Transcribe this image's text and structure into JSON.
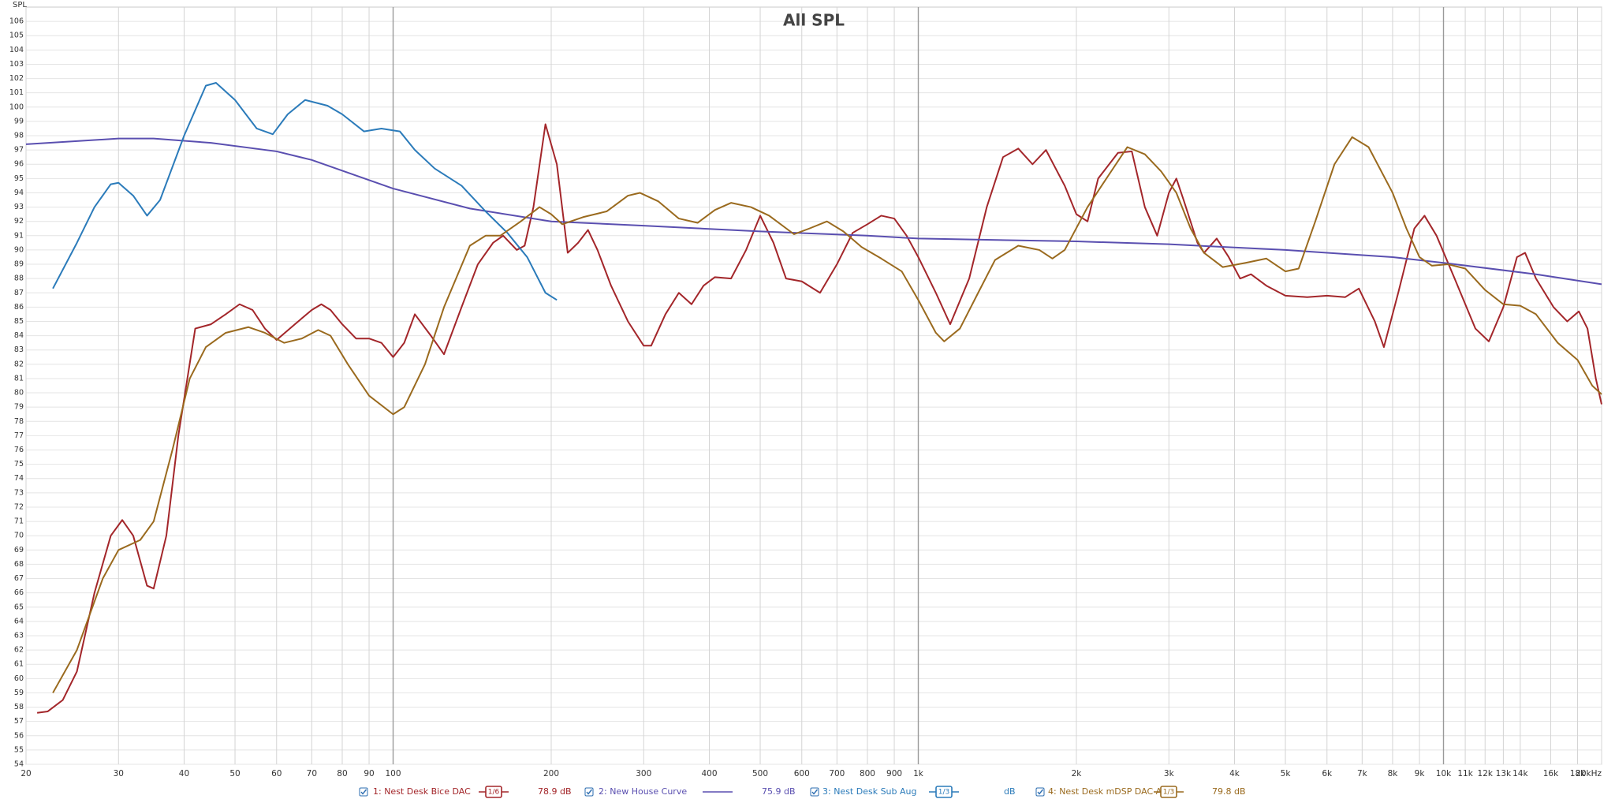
{
  "chart_data": {
    "type": "line",
    "title": "All SPL",
    "y_label": "SPL",
    "xscale": "log",
    "grid": true,
    "xlim": [
      20,
      20000
    ],
    "ylim": [
      54,
      107
    ],
    "xticks": [
      20,
      30,
      40,
      50,
      60,
      70,
      80,
      90,
      100,
      200,
      300,
      400,
      500,
      600,
      700,
      800,
      900,
      {
        "value": 1000,
        "label": "1k"
      },
      {
        "value": 2000,
        "label": "2k"
      },
      {
        "value": 3000,
        "label": "3k"
      },
      {
        "value": 4000,
        "label": "4k"
      },
      {
        "value": 5000,
        "label": "5k"
      },
      {
        "value": 6000,
        "label": "6k"
      },
      {
        "value": 7000,
        "label": "7k"
      },
      {
        "value": 8000,
        "label": "8k"
      },
      {
        "value": 9000,
        "label": "9k"
      },
      {
        "value": 10000,
        "label": "10k"
      },
      {
        "value": 11000,
        "label": "11k"
      },
      {
        "value": 12000,
        "label": "12k"
      },
      {
        "value": 13000,
        "label": "13k"
      },
      {
        "value": 14000,
        "label": "14k"
      },
      {
        "value": 16000,
        "label": "16k"
      },
      {
        "value": 18000,
        "label": "18k"
      },
      {
        "value": 20000,
        "label": "20kHz"
      }
    ],
    "yticks": [
      54,
      55,
      56,
      57,
      58,
      59,
      60,
      61,
      62,
      63,
      64,
      65,
      66,
      67,
      68,
      69,
      70,
      71,
      72,
      73,
      74,
      75,
      76,
      77,
      78,
      79,
      80,
      81,
      82,
      83,
      84,
      85,
      86,
      87,
      88,
      89,
      90,
      91,
      92,
      93,
      94,
      95,
      96,
      97,
      98,
      99,
      100,
      101,
      102,
      103,
      104,
      105,
      106
    ],
    "series": [
      {
        "name": "1: Nest Desk Bice DAC",
        "smoothing": "1/6",
        "level": "78.9 dB",
        "color": "#a3262a",
        "x": [
          21,
          22,
          23.5,
          25,
          27,
          29,
          30.5,
          32,
          34,
          35,
          37,
          39,
          42,
          45,
          48,
          51,
          54,
          57,
          60,
          65,
          70,
          73,
          76,
          80,
          85,
          90,
          95,
          100,
          105,
          110,
          118,
          125,
          135,
          145,
          155,
          162,
          172,
          178,
          185,
          195,
          205,
          215,
          225,
          235,
          245,
          260,
          280,
          300,
          310,
          330,
          350,
          370,
          390,
          410,
          440,
          470,
          500,
          530,
          560,
          600,
          650,
          700,
          750,
          800,
          850,
          900,
          950,
          1000,
          1080,
          1150,
          1250,
          1350,
          1450,
          1550,
          1650,
          1750,
          1900,
          2000,
          2100,
          2200,
          2400,
          2550,
          2700,
          2850,
          3000,
          3100,
          3200,
          3400,
          3500,
          3700,
          3900,
          4100,
          4300,
          4600,
          5000,
          5500,
          6000,
          6500,
          6900,
          7400,
          7700,
          8200,
          8800,
          9200,
          9700,
          10500,
          11500,
          12200,
          13000,
          13800,
          14300,
          15000,
          16200,
          17200,
          18100,
          18800,
          19500,
          20000
        ],
        "values": [
          57.6,
          57.7,
          58.5,
          60.5,
          66,
          70,
          71.1,
          70,
          66.5,
          66.3,
          70,
          77,
          84.5,
          84.8,
          85.5,
          86.2,
          85.8,
          84.5,
          83.7,
          84.8,
          85.8,
          86.2,
          85.8,
          84.8,
          83.8,
          83.8,
          83.5,
          82.5,
          83.5,
          85.5,
          84,
          82.7,
          86,
          89,
          90.5,
          91,
          90,
          90.3,
          93,
          98.8,
          96,
          89.8,
          90.5,
          91.4,
          90,
          87.5,
          85,
          83.3,
          83.3,
          85.5,
          87,
          86.2,
          87.5,
          88.1,
          88,
          90,
          92.4,
          90.5,
          88,
          87.8,
          87,
          89,
          91.2,
          91.8,
          92.4,
          92.2,
          91,
          89.5,
          87,
          84.8,
          88,
          93,
          96.5,
          97.1,
          96,
          97,
          94.5,
          92.5,
          92,
          95,
          96.8,
          96.9,
          93,
          91,
          94,
          95,
          93.5,
          90.5,
          89.8,
          90.8,
          89.5,
          88,
          88.3,
          87.5,
          86.8,
          86.7,
          86.8,
          86.7,
          87.3,
          85,
          83.2,
          87,
          91.5,
          92.4,
          91,
          88,
          84.5,
          83.6,
          86,
          89.5,
          89.8,
          88,
          86,
          85,
          85.7,
          84.5,
          81,
          79.2
        ]
      },
      {
        "name": "2: New House Curve",
        "level": "75.9 dB",
        "color": "#5a4fb0",
        "x": [
          20,
          30,
          35,
          45,
          60,
          70,
          100,
          140,
          200,
          300,
          500,
          800,
          1000,
          2000,
          3000,
          5000,
          8000,
          10000,
          15000,
          20000
        ],
        "values": [
          97.4,
          97.8,
          97.8,
          97.5,
          96.9,
          96.3,
          94.3,
          92.9,
          92,
          91.7,
          91.3,
          91,
          90.8,
          90.6,
          90.4,
          90,
          89.5,
          89.1,
          88.3,
          87.6
        ]
      },
      {
        "name": "3: Nest Desk Sub Aug",
        "smoothing": "1/3",
        "level": "dB",
        "color": "#2b7bba",
        "x": [
          22.5,
          25,
          27,
          29,
          30,
          32,
          34,
          36,
          40,
          44,
          46,
          50,
          55,
          59,
          63,
          68,
          75,
          80,
          88,
          95,
          103,
          110,
          120,
          135,
          150,
          165,
          180,
          195,
          205
        ],
        "values": [
          87.3,
          90.5,
          93,
          94.6,
          94.7,
          93.8,
          92.4,
          93.5,
          98,
          101.5,
          101.7,
          100.5,
          98.5,
          98.1,
          99.5,
          100.5,
          100.1,
          99.5,
          98.3,
          98.5,
          98.3,
          97,
          95.7,
          94.5,
          92.7,
          91.2,
          89.5,
          87,
          86.5
        ]
      },
      {
        "name": "4: Nest Desk mDSP DAC Aug",
        "smoothing": "1/3",
        "level": "79.8 dB",
        "color": "#9a6a1e",
        "x": [
          22.5,
          25,
          28,
          30,
          33,
          35,
          38,
          41,
          44,
          48,
          53,
          57,
          62,
          67,
          72,
          76,
          82,
          90,
          100,
          105,
          115,
          125,
          140,
          150,
          160,
          175,
          190,
          200,
          210,
          230,
          255,
          280,
          295,
          320,
          350,
          380,
          410,
          440,
          480,
          520,
          580,
          620,
          670,
          720,
          780,
          850,
          930,
          1000,
          1080,
          1120,
          1200,
          1300,
          1400,
          1550,
          1700,
          1800,
          1900,
          2100,
          2300,
          2500,
          2700,
          2900,
          3100,
          3300,
          3500,
          3800,
          4200,
          4600,
          5000,
          5300,
          5700,
          6200,
          6700,
          7200,
          8000,
          8500,
          9000,
          9500,
          10200,
          11000,
          12000,
          13000,
          14000,
          15000,
          16500,
          18000,
          19200,
          20000
        ],
        "values": [
          59,
          62,
          67,
          69,
          69.7,
          71,
          76,
          81,
          83.2,
          84.2,
          84.6,
          84.2,
          83.5,
          83.8,
          84.4,
          84,
          82,
          79.8,
          78.5,
          79,
          82,
          86,
          90.3,
          91,
          91,
          92,
          93,
          92.5,
          91.8,
          92.3,
          92.7,
          93.8,
          94,
          93.4,
          92.2,
          91.9,
          92.8,
          93.3,
          93,
          92.4,
          91.1,
          91.5,
          92,
          91.3,
          90.2,
          89.4,
          88.5,
          86.5,
          84.2,
          83.6,
          84.5,
          87,
          89.3,
          90.3,
          90,
          89.4,
          90,
          93,
          95.2,
          97.2,
          96.7,
          95.5,
          94,
          91.5,
          89.8,
          88.8,
          89.1,
          89.4,
          88.5,
          88.7,
          92,
          96,
          97.9,
          97.2,
          94,
          91.5,
          89.5,
          88.9,
          89,
          88.7,
          87.2,
          86.2,
          86.1,
          85.5,
          83.5,
          82.3,
          80.5,
          79.9
        ]
      }
    ]
  }
}
